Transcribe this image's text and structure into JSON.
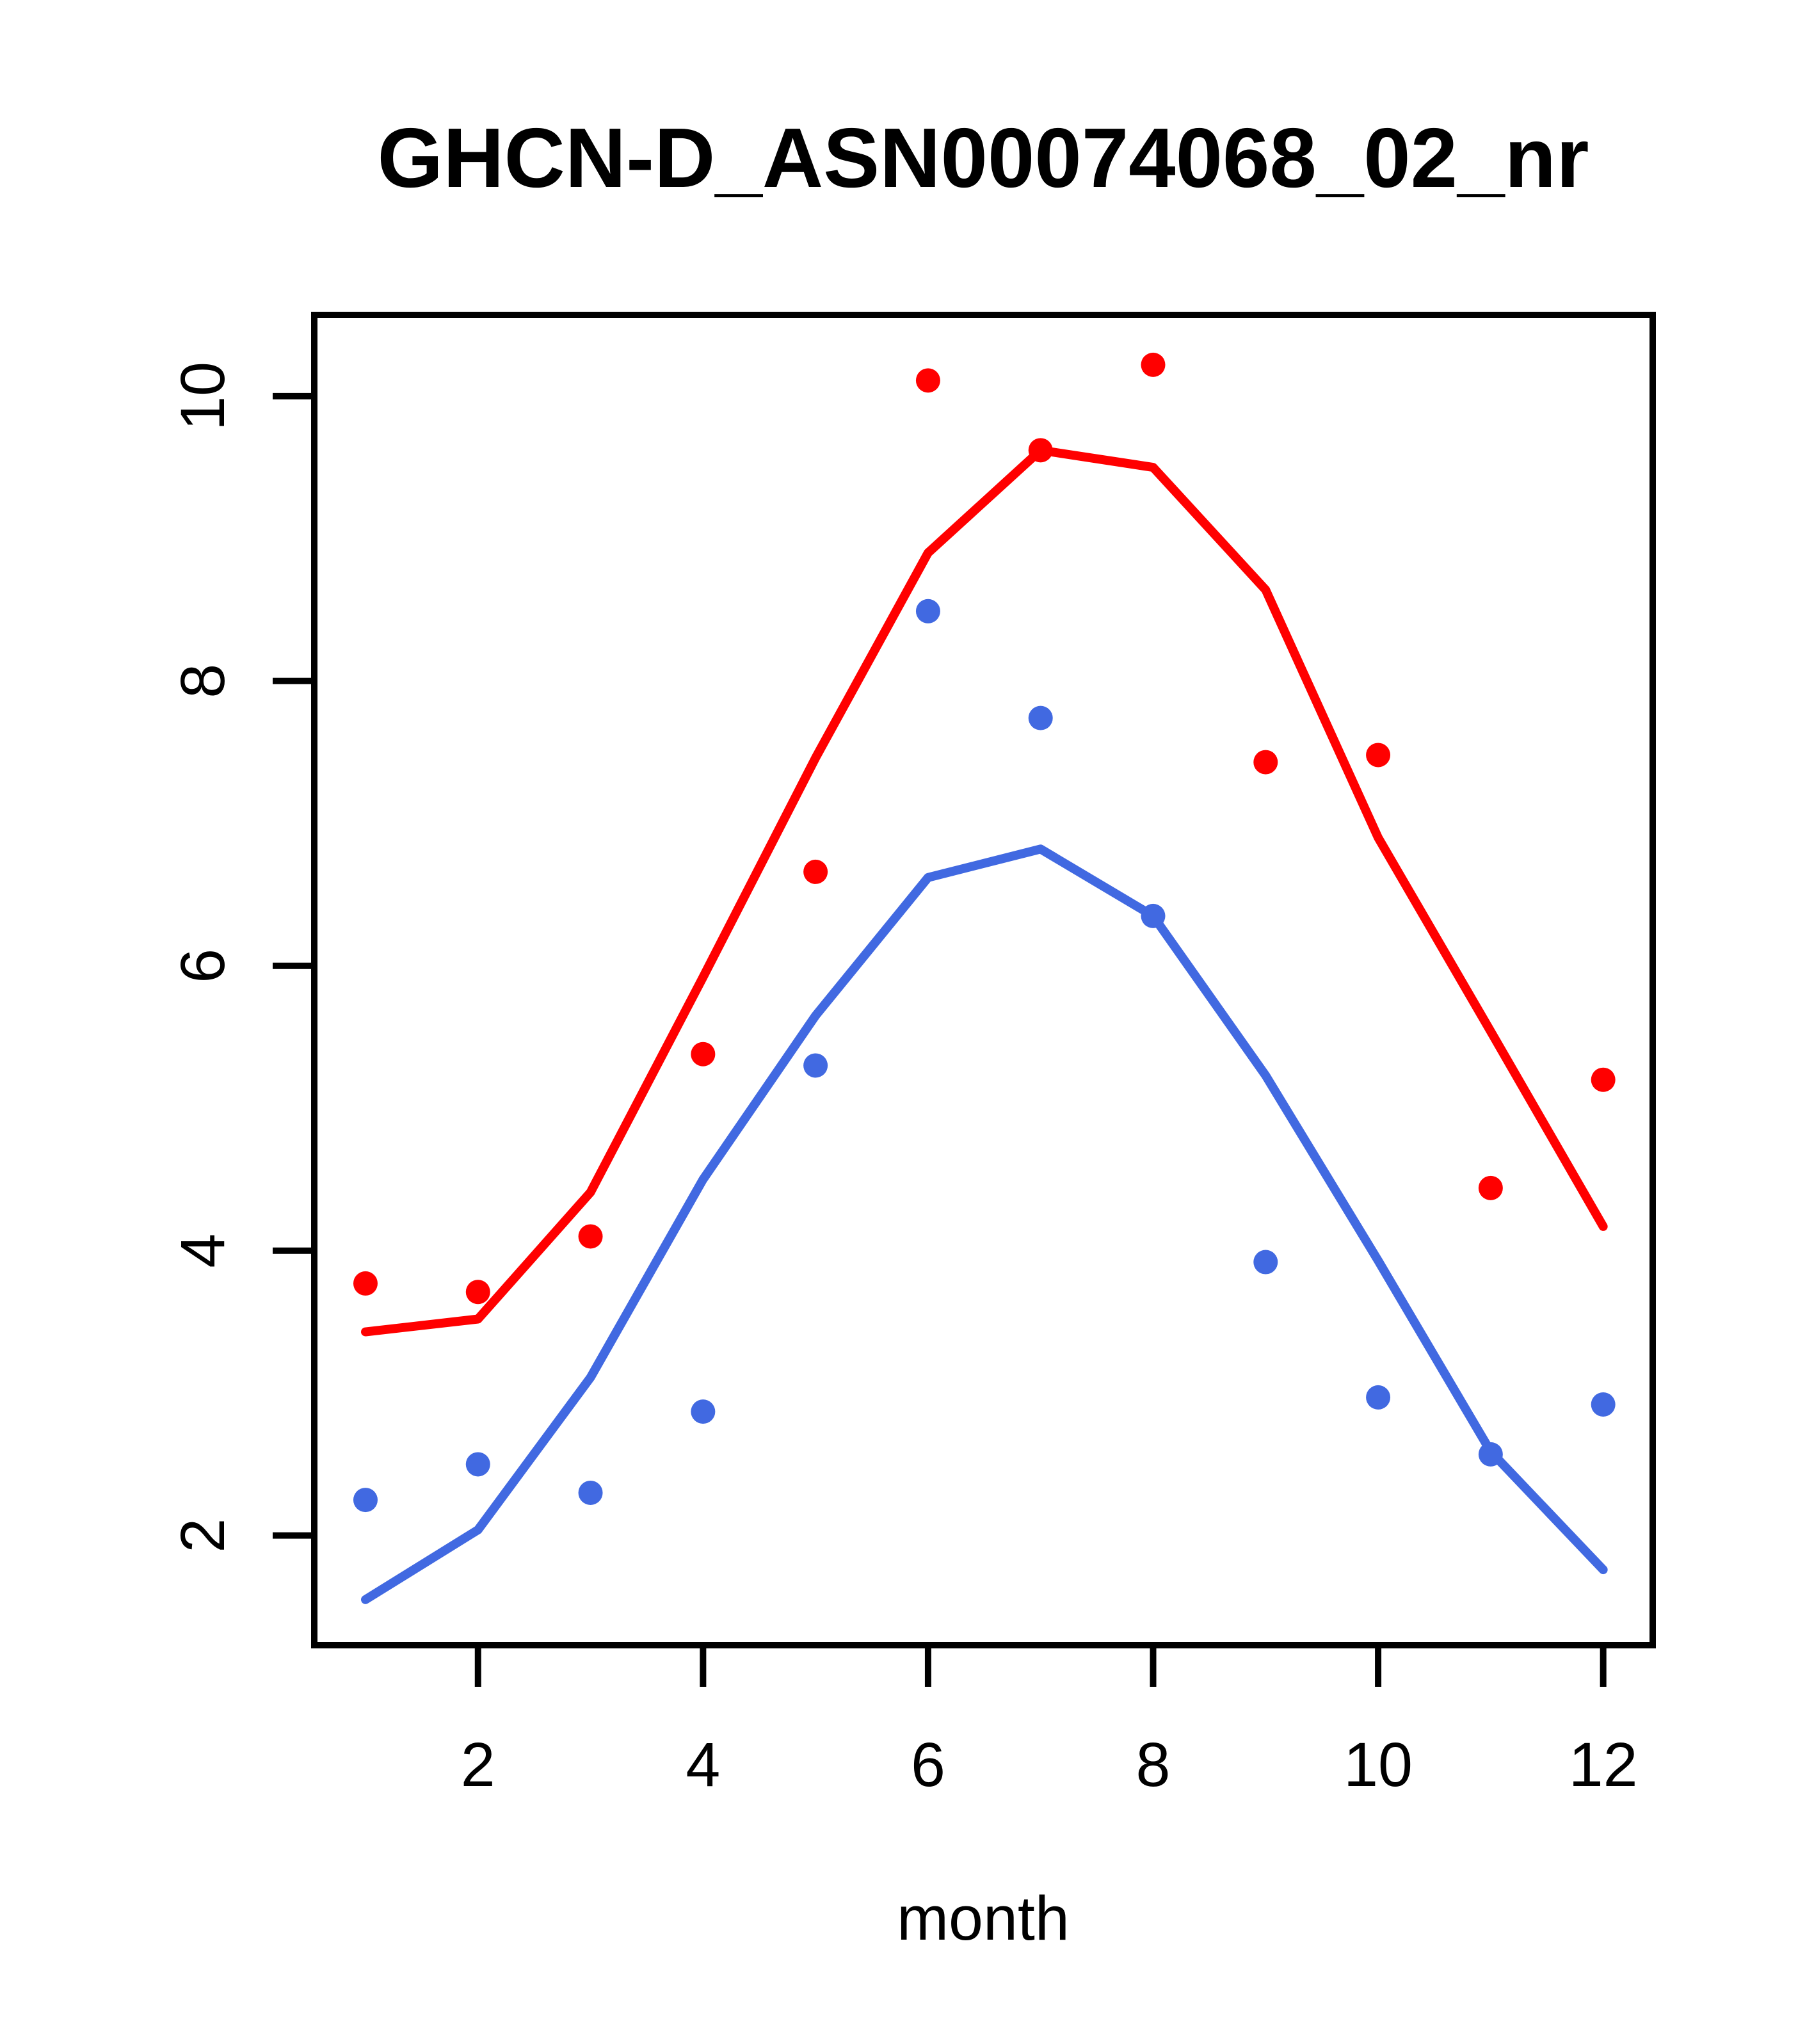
{
  "chart_data": {
    "type": "scatter",
    "title": "GHCN-D_ASN00074068_02_nr",
    "xlabel": "month",
    "ylabel": "",
    "grid": false,
    "legend_position": "none",
    "x": [
      1,
      2,
      3,
      4,
      5,
      6,
      7,
      8,
      9,
      10,
      11,
      12
    ],
    "x_ticks": [
      2,
      4,
      6,
      8,
      10,
      12
    ],
    "y_ticks": [
      2,
      4,
      6,
      8,
      10
    ],
    "xlim": [
      0.545,
      12.44
    ],
    "ylim": [
      1.23,
      10.57
    ],
    "colors": {
      "red": "#ff0000",
      "blue": "#4169e1",
      "axis": "#000000"
    },
    "series": [
      {
        "name": "red-points",
        "kind": "points",
        "color_key": "red",
        "values": [
          3.77,
          3.71,
          4.1,
          5.38,
          6.66,
          10.11,
          9.62,
          10.22,
          7.43,
          7.48,
          4.44,
          5.2
        ]
      },
      {
        "name": "red-line",
        "kind": "line",
        "color_key": "red",
        "values": [
          3.43,
          3.52,
          4.41,
          5.92,
          7.46,
          8.9,
          9.62,
          9.5,
          8.64,
          6.9,
          5.54,
          4.17
        ]
      },
      {
        "name": "blue-points",
        "kind": "points",
        "color_key": "blue",
        "values": [
          2.25,
          2.5,
          2.3,
          2.87,
          5.3,
          8.49,
          7.74,
          6.35,
          3.92,
          2.97,
          2.57,
          2.92
        ]
      },
      {
        "name": "blue-line",
        "kind": "line",
        "color_key": "blue",
        "values": [
          1.55,
          2.04,
          3.11,
          4.5,
          5.65,
          6.62,
          6.82,
          6.35,
          5.23,
          3.93,
          2.59,
          1.76
        ]
      }
    ]
  }
}
